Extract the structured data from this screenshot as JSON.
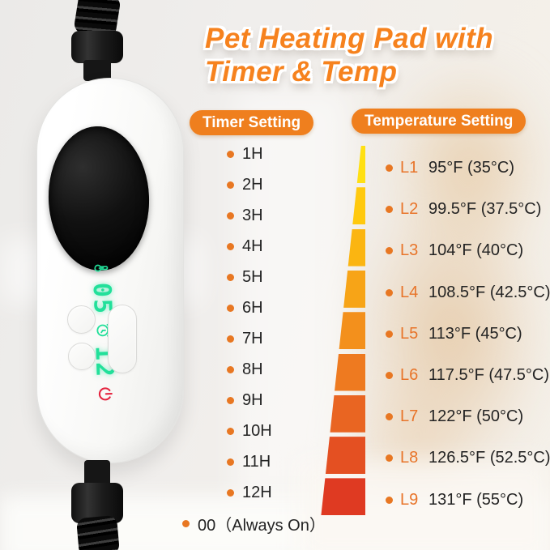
{
  "title": {
    "line1": "Pet Heating Pad with",
    "line2": "Timer & Temp"
  },
  "timer": {
    "header": "Timer Setting",
    "items": [
      "1H",
      "2H",
      "3H",
      "4H",
      "5H",
      "6H",
      "7H",
      "8H",
      "9H",
      "10H",
      "11H",
      "12H",
      "00（Always On）"
    ]
  },
  "temperature": {
    "header": "Temperature Setting",
    "levels": [
      {
        "label": "L1",
        "value": "95°F (35°C)",
        "bar_color": "#FFE013"
      },
      {
        "label": "L2",
        "value": "99.5°F (37.5°C)",
        "bar_color": "#FFC90E"
      },
      {
        "label": "L3",
        "value": "104°F (40°C)",
        "bar_color": "#FBB511"
      },
      {
        "label": "L4",
        "value": "108.5°F (42.5°C)",
        "bar_color": "#F7A417"
      },
      {
        "label": "L5",
        "value": "113°F (45°C)",
        "bar_color": "#F3901C"
      },
      {
        "label": "L6",
        "value": "117.5°F (47.5°C)",
        "bar_color": "#EE7A20"
      },
      {
        "label": "L7",
        "value": "122°F (50°C)",
        "bar_color": "#E96522"
      },
      {
        "label": "L8",
        "value": "126.5°F (52.5°C)",
        "bar_color": "#E45022"
      },
      {
        "label": "L9",
        "value": "131°F (55°C)",
        "bar_color": "#DF3A22"
      }
    ]
  },
  "device": {
    "display": {
      "temp_level": "05",
      "timer_hours": "12",
      "icons": [
        "thermometer-icon",
        "alarm-clock-icon",
        "power-icon"
      ]
    }
  },
  "colors": {
    "accent_orange": "#EF7F1E",
    "title_orange": "#F6821E",
    "bullet_orange": "#E87722",
    "display_green": "#22E09A",
    "power_red": "#E5243F"
  }
}
